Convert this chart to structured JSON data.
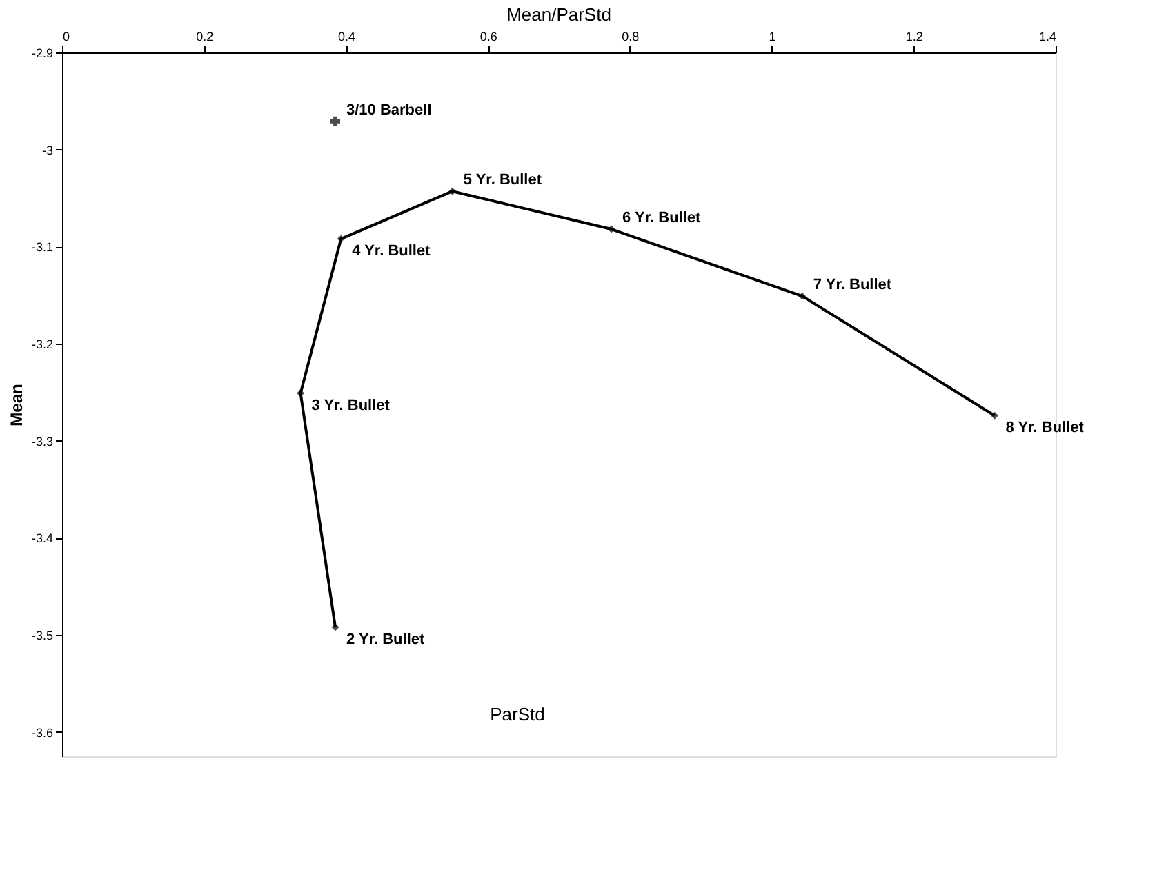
{
  "chart_data": {
    "type": "line",
    "title": "Mean/ParStd",
    "xlabel": "ParStd",
    "ylabel": "Mean",
    "xlim": [
      0,
      1.4
    ],
    "xticks": [
      0,
      0.2,
      0.4,
      0.6,
      0.8,
      1,
      1.2,
      1.4
    ],
    "ylim": [
      -3.625,
      -2.9
    ],
    "yticks": [
      -3.6,
      -3.5,
      -3.4,
      -3.3,
      -3.2,
      -3.1,
      -3,
      -2.9
    ],
    "grid": false,
    "series": [
      {
        "color": "#000000",
        "marker": "diamond",
        "line_style": "solid",
        "x": [
          0.385,
          0.336,
          0.393,
          0.55,
          0.774,
          1.043,
          1.314
        ],
        "values": [
          -3.492,
          -3.251,
          -3.092,
          -3.043,
          -3.082,
          -3.151,
          -3.274
        ]
      },
      {
        "type": "scatter",
        "color": "#000000",
        "marker": "cross",
        "x": [
          0.385
        ],
        "values": [
          -2.971
        ]
      }
    ],
    "annotations": [
      {
        "text": "2 Yr. Bullet",
        "x": 0.385,
        "y": -3.492
      },
      {
        "text": "3 Yr. Bullet",
        "x": 0.336,
        "y": -3.251
      },
      {
        "text": "4 Yr. Bullet",
        "x": 0.393,
        "y": -3.092
      },
      {
        "text": "5 Yr. Bullet",
        "x": 0.55,
        "y": -3.043
      },
      {
        "text": "6 Yr. Bullet",
        "x": 0.774,
        "y": -3.082
      },
      {
        "text": "7 Yr. Bullet",
        "x": 1.043,
        "y": -3.151
      },
      {
        "text": "8 Yr. Bullet",
        "x": 1.314,
        "y": -3.274
      },
      {
        "text": "3/10 Barbell",
        "x": 0.385,
        "y": -2.971
      }
    ]
  }
}
